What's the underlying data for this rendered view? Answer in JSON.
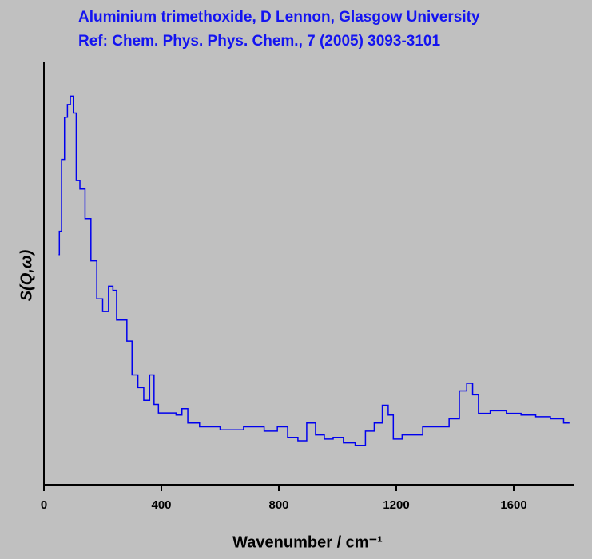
{
  "chart_data": {
    "type": "line",
    "title": "Aluminium trimethoxide, D Lennon, Glasgow University",
    "subtitle": "Ref: Chem. Phys. Phys. Chem., 7 (2005) 3093-3101",
    "xlabel": "Wavenumber / cm⁻¹",
    "ylabel": "S(Q,ω)",
    "xlim": [
      0,
      1800
    ],
    "ylim": [
      0,
      100
    ],
    "xticks": [
      0,
      400,
      800,
      1200,
      1600
    ],
    "step": true,
    "series": [
      {
        "color": "#0000ee",
        "x": [
          50,
          55,
          65,
          75,
          85,
          95,
          105,
          115,
          130,
          150,
          170,
          190,
          210,
          230,
          240,
          255,
          275,
          290,
          310,
          330,
          350,
          370,
          380,
          400,
          440,
          460,
          480,
          500,
          560,
          640,
          720,
          780,
          810,
          850,
          880,
          910,
          940,
          970,
          1000,
          1040,
          1080,
          1110,
          1140,
          1165,
          1180,
          1200,
          1240,
          1280,
          1300,
          1360,
          1400,
          1430,
          1450,
          1470,
          1490,
          1550,
          1600,
          1650,
          1700,
          1750,
          1790
        ],
        "values": [
          54.5,
          60,
          77,
          87,
          90,
          92,
          88,
          72,
          70,
          63,
          53,
          44,
          41,
          47,
          46,
          39,
          39,
          34,
          26,
          23,
          20,
          26,
          19,
          17,
          17,
          16.5,
          18,
          14.6,
          13.7,
          13,
          13.7,
          12.7,
          13.7,
          11.2,
          10.4,
          14.6,
          11.8,
          10.8,
          11.2,
          9.9,
          9.3,
          12.7,
          14.6,
          18.8,
          16.5,
          10.8,
          11.8,
          11.8,
          13.7,
          13.7,
          15.6,
          22.2,
          24,
          21.3,
          16.9,
          17.5,
          16.9,
          16.5,
          16.1,
          15.6,
          14.6
        ]
      }
    ]
  }
}
